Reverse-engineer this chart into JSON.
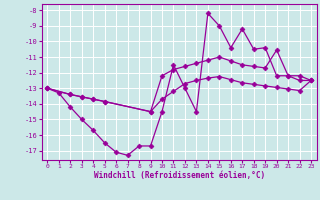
{
  "xlabel": "Windchill (Refroidissement éolien,°C)",
  "bg_color": "#cce8e8",
  "grid_color": "#ffffff",
  "line_color": "#990099",
  "x_ticks": [
    0,
    1,
    2,
    3,
    4,
    5,
    6,
    7,
    8,
    9,
    10,
    11,
    12,
    13,
    14,
    15,
    16,
    17,
    18,
    19,
    20,
    21,
    22,
    23
  ],
  "y_ticks": [
    -8,
    -9,
    -10,
    -11,
    -12,
    -13,
    -14,
    -15,
    -16,
    -17
  ],
  "xlim": [
    -0.5,
    23.5
  ],
  "ylim": [
    -17.6,
    -7.6
  ],
  "line1_x": [
    0,
    1,
    2,
    3,
    4,
    5,
    6,
    7,
    8,
    9,
    10,
    11,
    12,
    13,
    14,
    15,
    16,
    17,
    18,
    19,
    20,
    21,
    22,
    23
  ],
  "line1_y": [
    -13.0,
    -13.3,
    -14.2,
    -15.0,
    -15.7,
    -16.5,
    -17.1,
    -17.3,
    -16.7,
    -16.7,
    -14.5,
    -11.5,
    -13.0,
    -14.5,
    -8.2,
    -9.0,
    -10.4,
    -9.2,
    -10.5,
    -10.4,
    -12.2,
    -12.2,
    -12.5,
    -12.5
  ],
  "line2_x": [
    0,
    2,
    3,
    4,
    5,
    9,
    10,
    11,
    12,
    13,
    14,
    15,
    16,
    17,
    18,
    19,
    20,
    21,
    22,
    23
  ],
  "line2_y": [
    -13.0,
    -13.4,
    -13.55,
    -13.7,
    -13.85,
    -14.5,
    -12.2,
    -11.8,
    -11.6,
    -11.4,
    -11.2,
    -11.0,
    -11.25,
    -11.5,
    -11.6,
    -11.7,
    -10.55,
    -12.2,
    -12.2,
    -12.5
  ],
  "line3_x": [
    0,
    2,
    3,
    4,
    5,
    9,
    10,
    11,
    12,
    13,
    14,
    15,
    16,
    17,
    18,
    19,
    20,
    21,
    22,
    23
  ],
  "line3_y": [
    -13.0,
    -13.4,
    -13.55,
    -13.7,
    -13.85,
    -14.5,
    -13.7,
    -13.2,
    -12.7,
    -12.5,
    -12.35,
    -12.25,
    -12.45,
    -12.65,
    -12.75,
    -12.85,
    -12.95,
    -13.05,
    -13.15,
    -12.5
  ]
}
